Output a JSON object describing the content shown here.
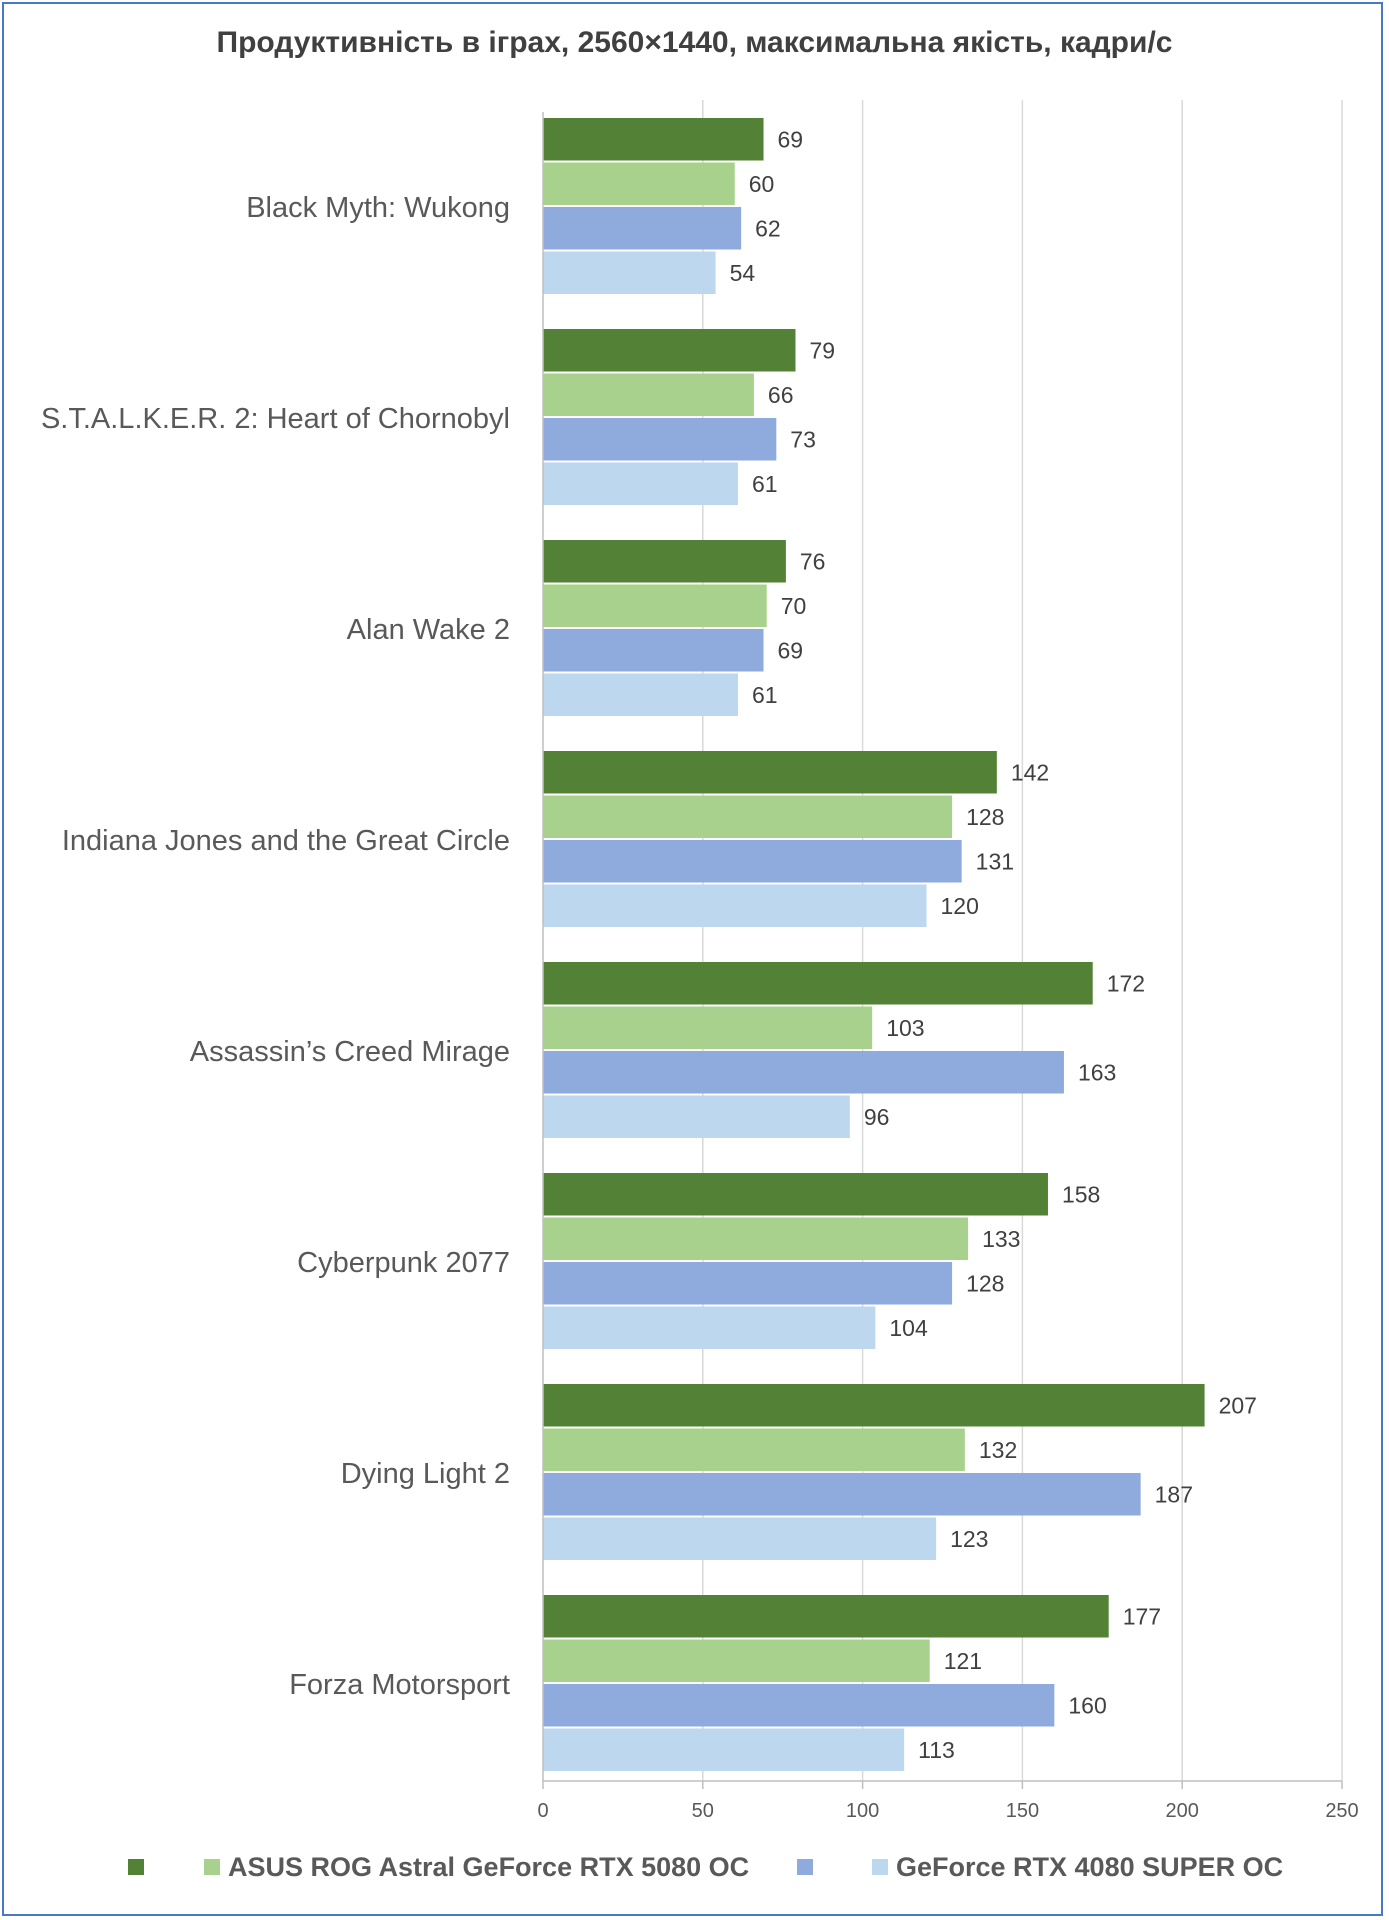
{
  "chart_data": {
    "type": "bar",
    "orientation": "horizontal",
    "title": "Продуктивність в іграх, 2560×1440, максимальна якість, кадри/с",
    "categories": [
      "Black Myth: Wukong",
      "S.T.A.L.K.E.R. 2: Heart of Chornobyl",
      "Alan Wake 2",
      "Indiana Jones and the Great Circle",
      "Assassin’s Creed  Mirage",
      "Cyberpunk 2077",
      "Dying Light 2",
      "Forza Motorsport"
    ],
    "series": [
      {
        "color": "#538135",
        "values": [
          69,
          79,
          76,
          142,
          172,
          158,
          207,
          177
        ]
      },
      {
        "name": "ASUS ROG Astral GeForce RTX 5080 OC",
        "color": "#a9d18e",
        "values": [
          60,
          66,
          70,
          128,
          103,
          133,
          132,
          121
        ]
      },
      {
        "color": "#8faadc",
        "values": [
          62,
          73,
          69,
          131,
          163,
          128,
          187,
          160
        ]
      },
      {
        "name": "GeForce RTX 4080 SUPER OC",
        "color": "#bdd7ee",
        "values": [
          54,
          61,
          61,
          120,
          96,
          104,
          123,
          113
        ]
      }
    ],
    "xlim": [
      0,
      250
    ],
    "xticks": [
      0,
      50,
      100,
      150,
      200,
      250
    ],
    "grid": true,
    "legend_position": "bottom",
    "xlabel": "",
    "ylabel": ""
  }
}
